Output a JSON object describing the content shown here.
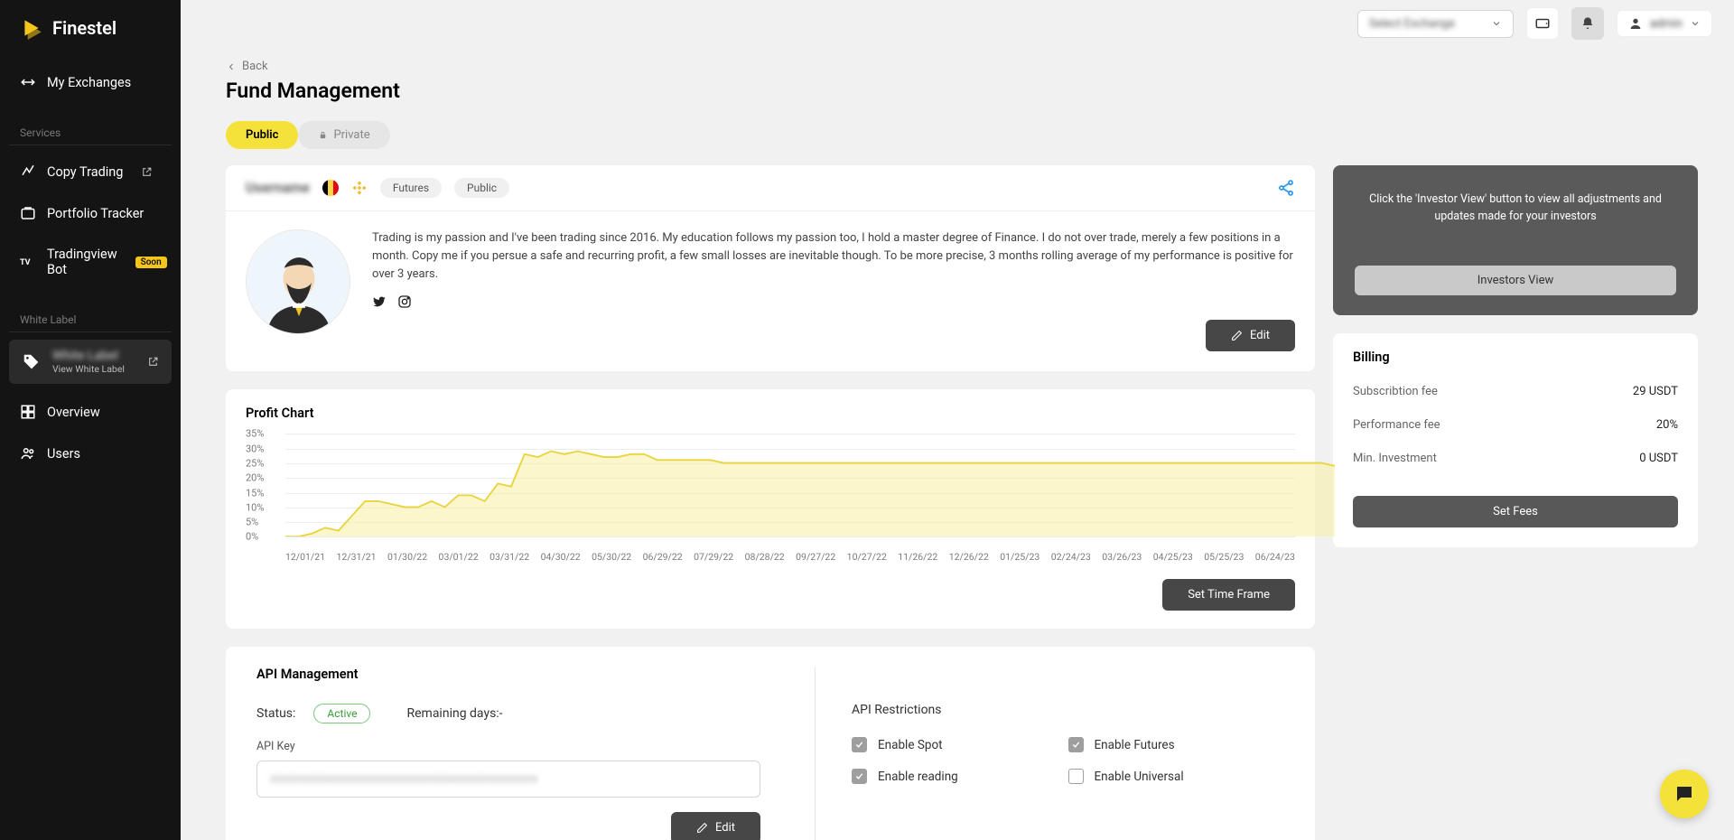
{
  "brand": {
    "name": "Finestel"
  },
  "sidebar": {
    "my_exchanges": "My Exchanges",
    "section_services": "Services",
    "copy_trading": "Copy Trading",
    "portfolio_tracker": "Portfolio Tracker",
    "tradingview_bot": "Tradingview Bot",
    "soon_badge": "Soon",
    "section_white_label": "White Label",
    "wl_name": "White Label",
    "wl_sub": "View White Label",
    "overview": "Overview",
    "users": "Users"
  },
  "topbar": {
    "exchange_blurred": "Select Exchange",
    "user_blurred": "admin"
  },
  "page": {
    "back": "Back",
    "title": "Fund Management",
    "visibility": {
      "public": "Public",
      "private": "Private"
    }
  },
  "profile": {
    "name_blurred": "Username",
    "chips": {
      "futures": "Futures",
      "public": "Public"
    },
    "bio": "Trading is my passion and I've been trading since 2016. My education follows my passion too, I hold a master degree of Finance. I do not over trade, merely a few positions in a month. Copy me if you persue a safe and recurring profit, a few small losses are inevitable though. To be more precise, 3 months rolling average of my performance is positive for over 3 years.",
    "edit_btn": "Edit"
  },
  "chart": {
    "title": "Profit Chart",
    "set_time_frame": "Set Time Frame",
    "y": {
      "ticks": [
        "0%",
        "5%",
        "10%",
        "15%",
        "20%",
        "25%",
        "30%",
        "35%"
      ],
      "max": 35
    },
    "x": {
      "labels": [
        "12/01/21",
        "12/31/21",
        "01/30/22",
        "03/01/22",
        "03/31/22",
        "04/30/22",
        "05/30/22",
        "06/29/22",
        "07/29/22",
        "08/28/22",
        "09/27/22",
        "10/27/22",
        "11/26/22",
        "12/26/22",
        "01/25/23",
        "02/24/23",
        "03/26/23",
        "04/25/23",
        "05/25/23",
        "06/24/23"
      ]
    },
    "series": {
      "color_stroke": "#e9d43e",
      "color_fill": "#f7eea2",
      "values": [
        0,
        0,
        1,
        3,
        2,
        7,
        12,
        12,
        11,
        10,
        10,
        12,
        10,
        14,
        14,
        12,
        18,
        17,
        28,
        27,
        29,
        28,
        29,
        28,
        27,
        27,
        28,
        28,
        26,
        26,
        26,
        26,
        26,
        25,
        25,
        25,
        25,
        25,
        25,
        25,
        25,
        25,
        25,
        25,
        25,
        25,
        25,
        25,
        25,
        25,
        25,
        25,
        25,
        25,
        25,
        25,
        25,
        25,
        25,
        25,
        25,
        25,
        25,
        25,
        25,
        25,
        25,
        25,
        25,
        25,
        25,
        25,
        25,
        25,
        25,
        25,
        25,
        25,
        25,
        24
      ]
    }
  },
  "api": {
    "title": "API Management",
    "status_label": "Status:",
    "status_value": "Active",
    "remaining_label": "Remaining days:-",
    "key_label": "API Key",
    "key_value_blurred": "xxxxxxxxxxxxxxxxxxxxxxxxxxxxxxxxxxxxxxxxxxxxxx",
    "edit_btn": "Edit",
    "restrictions_title": "API Restrictions",
    "restrictions": {
      "enable_spot": {
        "label": "Enable Spot",
        "checked": true
      },
      "enable_futures": {
        "label": "Enable Futures",
        "checked": true
      },
      "enable_reading": {
        "label": "Enable reading",
        "checked": true
      },
      "enable_universal": {
        "label": "Enable Universal",
        "checked": false
      }
    }
  },
  "investors": {
    "text": "Click the 'Investor View' button to view all adjustments and updates made for your investors",
    "btn": "Investors View"
  },
  "billing": {
    "title": "Billing",
    "subscription_label": "Subscribtion fee",
    "subscription_value": "29 USDT",
    "performance_label": "Performance fee",
    "performance_value": "20%",
    "min_inv_label": "Min. Investment",
    "min_inv_value": "0 USDT",
    "set_fees_btn": "Set Fees"
  }
}
